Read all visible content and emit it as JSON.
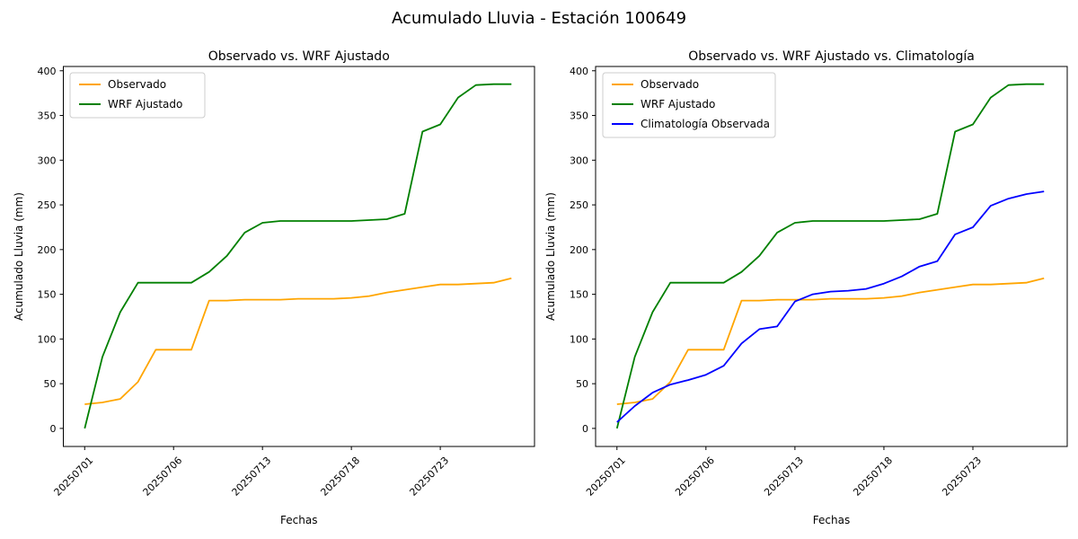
{
  "figure": {
    "suptitle": "Acumulado Lluvia - Estación 100649"
  },
  "colors": {
    "observado": "#FFA500",
    "wrf_ajustado": "#008000",
    "climatologia": "#0000FF",
    "spine": "#000000",
    "legend_border": "#cccccc"
  },
  "chart_data": [
    {
      "type": "line",
      "title": "Observado vs. WRF Ajustado",
      "xlabel": "Fechas",
      "ylabel": "Acumulado Lluvia (mm)",
      "x_axis_type": "index",
      "n_points": 25,
      "x_tick_positions": [
        0,
        5,
        10,
        15,
        20
      ],
      "x_tick_labels": [
        "20250701",
        "20250706",
        "20250713",
        "20250718",
        "20250723"
      ],
      "y_ticks": [
        0,
        50,
        100,
        150,
        200,
        250,
        300,
        350,
        400
      ],
      "xlim": [
        -1.2,
        25.3
      ],
      "ylim": [
        -20.2,
        404.8
      ],
      "grid": false,
      "legend_loc": "upper left",
      "series": [
        {
          "name": "Observado",
          "color": "#FFA500",
          "values": [
            27,
            29,
            33,
            52,
            88,
            88,
            88,
            143,
            143,
            144,
            144,
            144,
            145,
            145,
            145,
            146,
            148,
            152,
            155,
            158,
            161,
            161,
            162,
            163,
            168
          ]
        },
        {
          "name": "WRF Ajustado",
          "color": "#008000",
          "values": [
            0,
            80,
            130,
            163,
            163,
            163,
            163,
            175,
            193,
            219,
            230,
            232,
            232,
            232,
            232,
            232,
            233,
            234,
            240,
            332,
            340,
            370,
            384,
            385,
            385
          ]
        }
      ]
    },
    {
      "type": "line",
      "title": "Observado vs. WRF Ajustado vs. Climatología",
      "xlabel": "Fechas",
      "ylabel": "Acumulado Lluvia (mm)",
      "x_axis_type": "index",
      "n_points": 25,
      "x_tick_positions": [
        0,
        5,
        10,
        15,
        20
      ],
      "x_tick_labels": [
        "20250701",
        "20250706",
        "20250713",
        "20250718",
        "20250723"
      ],
      "y_ticks": [
        0,
        50,
        100,
        150,
        200,
        250,
        300,
        350,
        400
      ],
      "xlim": [
        -1.2,
        25.3
      ],
      "ylim": [
        -20.2,
        404.8
      ],
      "grid": false,
      "legend_loc": "upper left",
      "series": [
        {
          "name": "Observado",
          "color": "#FFA500",
          "values": [
            27,
            29,
            33,
            52,
            88,
            88,
            88,
            143,
            143,
            144,
            144,
            144,
            145,
            145,
            145,
            146,
            148,
            152,
            155,
            158,
            161,
            161,
            162,
            163,
            168
          ]
        },
        {
          "name": "WRF Ajustado",
          "color": "#008000",
          "values": [
            0,
            80,
            130,
            163,
            163,
            163,
            163,
            175,
            193,
            219,
            230,
            232,
            232,
            232,
            232,
            232,
            233,
            234,
            240,
            332,
            340,
            370,
            384,
            385,
            385
          ]
        },
        {
          "name": "Climatología Observada",
          "color": "#0000FF",
          "values": [
            7,
            25,
            40,
            49,
            54,
            60,
            70,
            95,
            111,
            114,
            142,
            150,
            153,
            154,
            156,
            162,
            170,
            181,
            187,
            217,
            225,
            249,
            257,
            262,
            265
          ]
        }
      ]
    }
  ]
}
